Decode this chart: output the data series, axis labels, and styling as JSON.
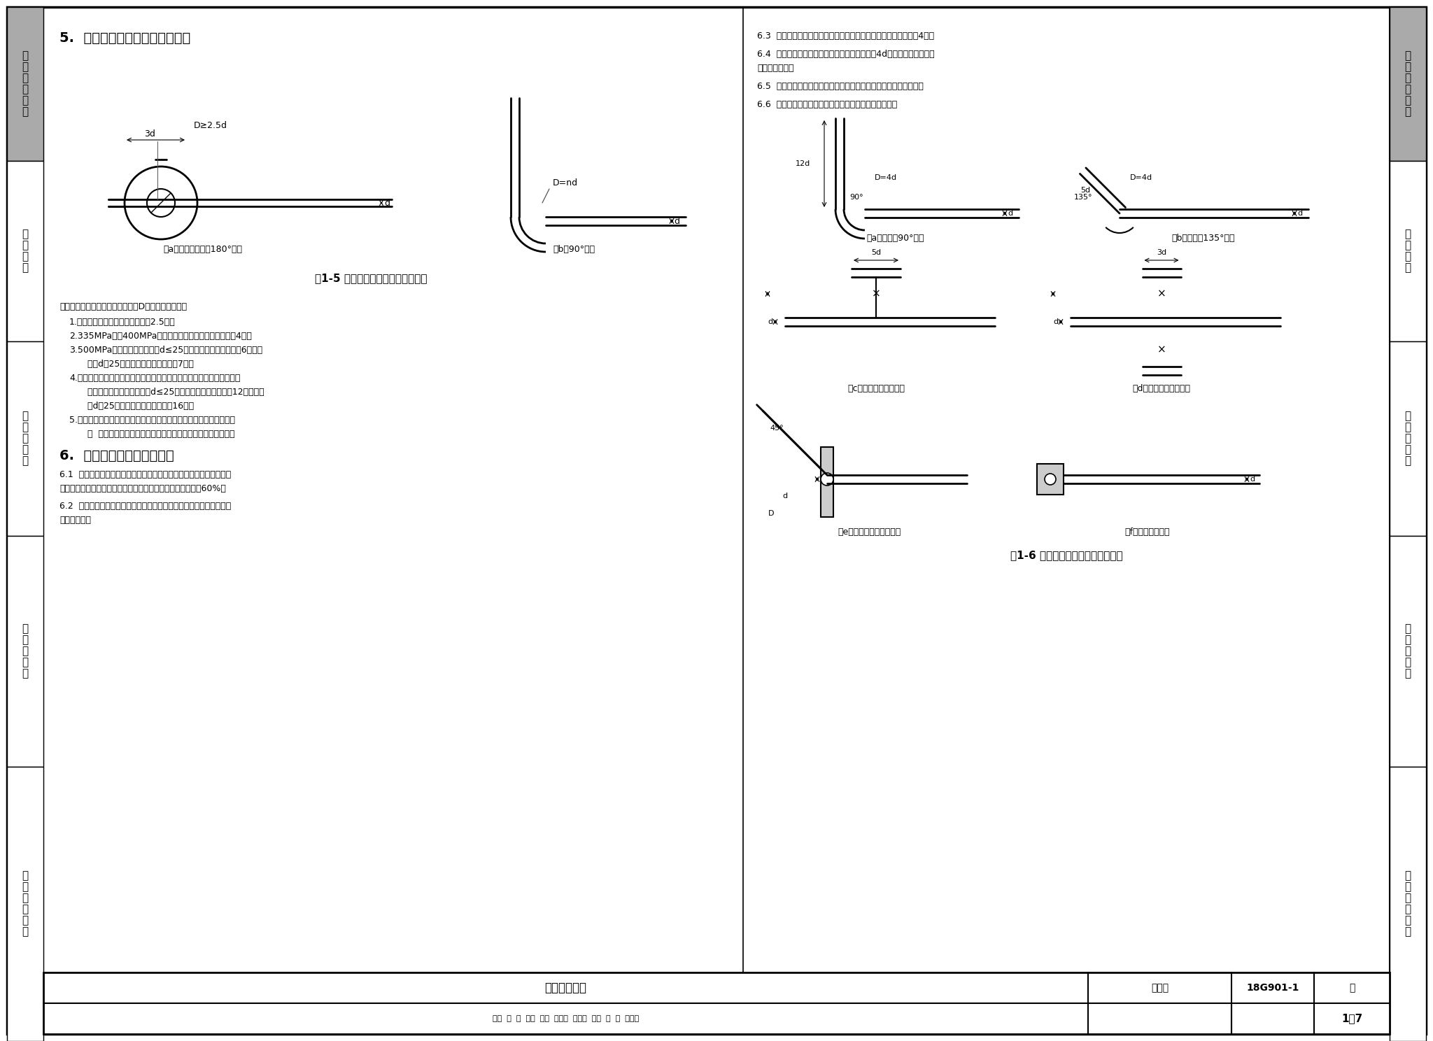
{
  "page_bg": "#ffffff",
  "border_color": "#000000",
  "sidebar_bg": "#c8c8c8",
  "sidebar_labels": [
    "一般构造要求",
    "框架部分",
    "剪力墙部分",
    "普通板部分",
    "无梁楼盖部分"
  ],
  "sidebar_heights": [
    220,
    258,
    278,
    330,
    392
  ],
  "title_section5": "5.  钢筋弯钩与弯折的弯弧内直径",
  "title_section6": "6.  纵向钢筋弯钩与机械锚固",
  "fig5_caption": "图1-5 钢筋弯钩与弯折的弯弧内直径",
  "fig6_caption": "图1-6 纵向钢筋弯钩与机械锚固形式",
  "sub_a1": "（a）光圆钢筋末端180°弯钩",
  "sub_b1": "（b）90°弯折",
  "sub_a2": "（a）末端弯90°弯钩",
  "sub_b2": "（b）末端弯135°弯钩",
  "sub_c2": "（c）末端一侧贴焊锚筋",
  "sub_d2": "（d）末端两侧贴焊锚筋",
  "sub_e2": "（e）末端与钢板穿孔塞焊",
  "sub_f2": "（f）末端螺栓锚头",
  "note_title": "注：钢筋弯钩与弯折的弯弧内直径D应符合下列规定：",
  "note_1": "1.光圆钢筋，不应小于钢筋直径的2.5倍。",
  "note_2": "2.335MPa级、400MPa级带肋钢筋，不应小于钢筋直径的4倍。",
  "note_3a": "3.500MPa级带肋钢筋，当直径d≤25时，不应小于钢筋直径的6倍；当",
  "note_3b": "   直径d＞25时，不应小于钢筋直径的7倍。",
  "note_4a": "4.位于框架结构顶层端节点处的梁上部纵向钢筋和柱外侧纵向钢筋，在节",
  "note_4b": "   点角部弯折处，当钢筋直径d≤25时，不应小于钢筋直径的12倍；当直",
  "note_4c": "   径d＞25时，不应小于钢筋直径的16倍。",
  "note_5a": "5.箍筋弯折处尚不应小于纵向受力钢筋直径；箍筋弯折纵向受力钢筋为",
  "note_5b": "   搭  接或并筋时，应按钢筋实际排布情况确定箍筋弯弧内直径。",
  "s61a": "6.1  当纵向受拉普通钢筋末端采用弯钩或机械锚固措施时，包括弯钩或",
  "s61b": "锚固端头在内的锚固长度（投影长度）可取为基本锚固长度的60%。",
  "s62a": "6.2  焊缝和螺纹长度应满足承载力的要求，螺栓锚头的规格应符合相关",
  "s62b": "标准的要求。",
  "s63": "6.3  螺栓锚头和焊接钢板的承压面积不应小于锚固钢筋截面面积的4倍。",
  "s64a": "6.4  螺栓锚头和焊接钢板的钢筋净间距不宜小于4d，否则应考虑群锚效",
  "s64b": "应的不利影响。",
  "s65": "6.5  截面角部的弯钩和一侧贴焊锚筋的布筋方向宜向截面内侧偏置。",
  "s66": "6.6  受压钢筋不应采用末端弯钩和一侧贴焊的锚固形式。",
  "table_center": "一般构造要求",
  "table_atlas": "图集号",
  "table_atlas_num": "18G901-1",
  "table_page_label": "页",
  "table_page_num": "1－7",
  "table_row2": "审核  刘  簇  刘弘  校对  高志强  宫主洁  设计  姚  刚  一洲川"
}
